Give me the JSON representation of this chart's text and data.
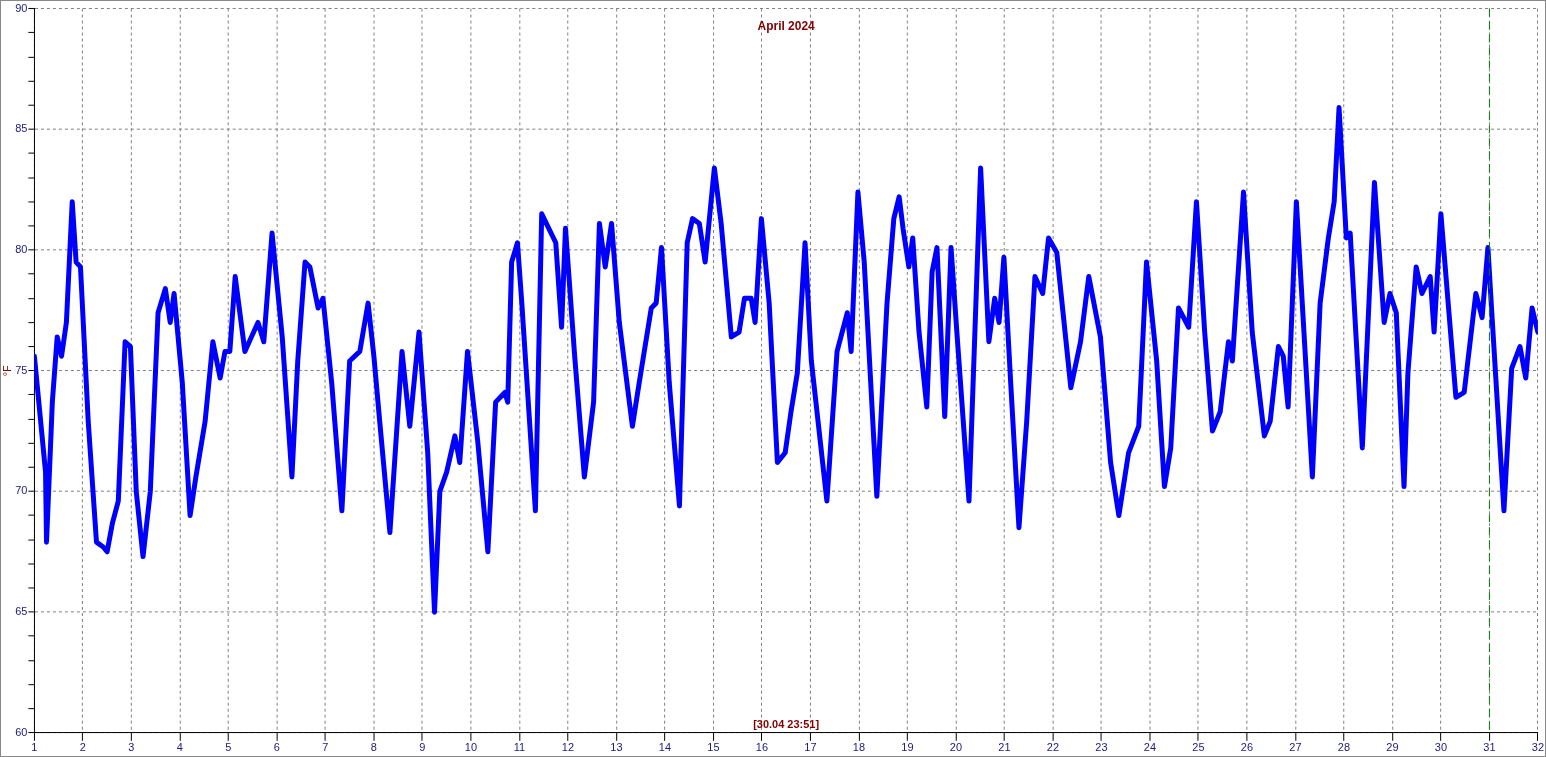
{
  "chart_data": {
    "type": "line",
    "title": "April 2024",
    "ylabel": "°F",
    "annotations": [
      "[30.04 23:51]"
    ],
    "xlim": [
      1,
      32
    ],
    "xticks": [
      1,
      2,
      3,
      4,
      5,
      6,
      7,
      8,
      9,
      10,
      11,
      12,
      13,
      14,
      15,
      16,
      17,
      18,
      19,
      20,
      21,
      22,
      23,
      24,
      25,
      26,
      27,
      28,
      29,
      30,
      31,
      32
    ],
    "ylim": [
      60,
      90
    ],
    "yticks": [
      60,
      {
        "value": 61,
        "label": null
      },
      {
        "value": 62,
        "label": null
      },
      {
        "value": 63,
        "label": null
      },
      {
        "value": 64,
        "label": null
      },
      65,
      {
        "value": 66,
        "label": null
      },
      {
        "value": 67,
        "label": null
      },
      {
        "value": 68,
        "label": null
      },
      {
        "value": 69,
        "label": null
      },
      70,
      {
        "value": 71,
        "label": null
      },
      {
        "value": 72,
        "label": null
      },
      {
        "value": 73,
        "label": null
      },
      {
        "value": 74,
        "label": null
      },
      75,
      {
        "value": 76,
        "label": null
      },
      {
        "value": 77,
        "label": null
      },
      {
        "value": 78,
        "label": null
      },
      {
        "value": 79,
        "label": null
      },
      80,
      {
        "value": 81,
        "label": null
      },
      {
        "value": 82,
        "label": null
      },
      {
        "value": 83,
        "label": null
      },
      {
        "value": 84,
        "label": null
      },
      85,
      {
        "value": 86,
        "label": null
      },
      {
        "value": 87,
        "label": null
      },
      {
        "value": 88,
        "label": null
      },
      {
        "value": 89,
        "label": null
      },
      90
    ],
    "grid": true,
    "marker": "none",
    "line_style": "solid",
    "ref_lines": [
      {
        "axis": "x",
        "value": 31,
        "color": "#008000",
        "line_style": "dashed"
      }
    ],
    "series": [
      {
        "color": "#0000ff",
        "x": [
          1.0,
          1.23,
          1.25,
          1.37,
          1.47,
          1.56,
          1.66,
          1.78,
          1.86,
          1.95,
          2.11,
          2.28,
          2.42,
          2.5,
          2.61,
          2.73,
          2.87,
          2.98,
          3.1,
          3.24,
          3.39,
          3.55,
          3.7,
          3.8,
          3.88,
          4.05,
          4.21,
          4.33,
          4.52,
          4.68,
          4.83,
          4.93,
          5.03,
          5.14,
          5.34,
          5.61,
          5.73,
          5.9,
          6.11,
          6.31,
          6.43,
          6.58,
          6.68,
          6.85,
          6.95,
          7.13,
          7.34,
          7.5,
          7.71,
          7.88,
          8.0,
          8.12,
          8.33,
          8.58,
          8.74,
          8.93,
          9.11,
          9.25,
          9.36,
          9.5,
          9.67,
          9.77,
          9.93,
          10.14,
          10.35,
          10.51,
          10.7,
          10.76,
          10.84,
          10.96,
          11.05,
          11.33,
          11.46,
          11.75,
          11.87,
          11.95,
          12.14,
          12.34,
          12.53,
          12.65,
          12.77,
          12.9,
          13.06,
          13.33,
          13.47,
          13.72,
          13.82,
          13.93,
          14.09,
          14.3,
          14.46,
          14.57,
          14.71,
          14.83,
          15.02,
          15.16,
          15.37,
          15.53,
          15.64,
          15.78,
          15.86,
          15.99,
          16.15,
          16.32,
          16.48,
          16.6,
          16.73,
          16.89,
          17.02,
          17.34,
          17.55,
          17.76,
          17.84,
          17.98,
          18.11,
          18.37,
          18.58,
          18.72,
          18.83,
          18.91,
          19.03,
          19.11,
          19.24,
          19.4,
          19.51,
          19.61,
          19.77,
          19.9,
          20.02,
          20.27,
          20.51,
          20.68,
          20.8,
          20.89,
          20.99,
          21.13,
          21.3,
          21.46,
          21.63,
          21.79,
          21.91,
          22.08,
          22.37,
          22.57,
          22.74,
          22.98,
          23.19,
          23.36,
          23.56,
          23.77,
          23.93,
          24.14,
          24.3,
          24.43,
          24.59,
          24.8,
          24.96,
          25.13,
          25.29,
          25.45,
          25.62,
          25.7,
          25.93,
          26.11,
          26.36,
          26.48,
          26.65,
          26.75,
          26.85,
          27.02,
          27.35,
          27.51,
          27.68,
          27.8,
          27.9,
          28.05,
          28.13,
          28.38,
          28.63,
          28.83,
          28.95,
          29.08,
          29.24,
          29.32,
          29.49,
          29.61,
          29.78,
          29.86,
          30.0,
          30.15,
          30.31,
          30.48,
          30.72,
          30.85,
          30.97,
          31.05,
          31.3,
          31.46,
          31.63,
          31.75,
          31.88,
          32.0
        ],
        "values": [
          75.6,
          70.8,
          67.9,
          73.7,
          76.4,
          75.6,
          77.0,
          82.0,
          79.5,
          79.3,
          72.9,
          67.9,
          67.7,
          67.5,
          68.7,
          69.6,
          76.2,
          76.0,
          70.0,
          67.3,
          70.0,
          77.4,
          78.4,
          77.0,
          78.2,
          74.5,
          69.0,
          70.6,
          72.9,
          76.2,
          74.7,
          75.8,
          75.8,
          78.9,
          75.8,
          77.0,
          76.2,
          80.7,
          76.4,
          70.6,
          75.4,
          79.5,
          79.3,
          77.6,
          78.0,
          74.5,
          69.2,
          75.4,
          75.8,
          77.8,
          75.6,
          72.9,
          68.3,
          75.8,
          72.7,
          76.6,
          71.6,
          65.0,
          70.0,
          70.8,
          72.3,
          71.2,
          75.8,
          72.1,
          67.5,
          73.7,
          74.1,
          73.7,
          79.5,
          80.3,
          77.8,
          69.2,
          81.5,
          80.3,
          76.8,
          80.9,
          75.6,
          70.6,
          73.7,
          81.1,
          79.3,
          81.1,
          77.0,
          72.7,
          74.5,
          77.6,
          77.8,
          80.1,
          74.5,
          69.4,
          80.3,
          81.3,
          81.1,
          79.5,
          83.4,
          81.1,
          76.4,
          76.6,
          78.0,
          78.0,
          77.0,
          81.3,
          77.8,
          71.2,
          71.6,
          73.3,
          74.9,
          80.3,
          75.4,
          69.6,
          75.8,
          77.4,
          75.8,
          82.4,
          79.5,
          69.8,
          77.8,
          81.3,
          82.2,
          80.9,
          79.3,
          80.5,
          76.6,
          73.5,
          79.1,
          80.1,
          73.1,
          80.1,
          76.6,
          69.6,
          83.4,
          76.2,
          78.0,
          77.0,
          79.7,
          74.5,
          68.5,
          72.9,
          78.9,
          78.2,
          80.5,
          79.9,
          74.3,
          76.2,
          78.9,
          76.4,
          71.2,
          69.0,
          71.6,
          72.7,
          79.5,
          75.4,
          70.2,
          71.8,
          77.6,
          76.8,
          82.0,
          76.6,
          72.5,
          73.3,
          76.2,
          75.4,
          82.4,
          76.6,
          72.3,
          72.9,
          76.0,
          75.6,
          73.5,
          82.0,
          70.6,
          77.8,
          80.5,
          82.0,
          85.9,
          80.5,
          80.7,
          71.8,
          82.8,
          77.0,
          78.2,
          77.4,
          70.2,
          74.9,
          79.3,
          78.2,
          78.9,
          76.6,
          81.5,
          77.8,
          73.9,
          74.1,
          78.2,
          77.2,
          80.1,
          77.4,
          69.2,
          75.1,
          76.0,
          74.7,
          77.6,
          76.6
        ]
      }
    ]
  }
}
